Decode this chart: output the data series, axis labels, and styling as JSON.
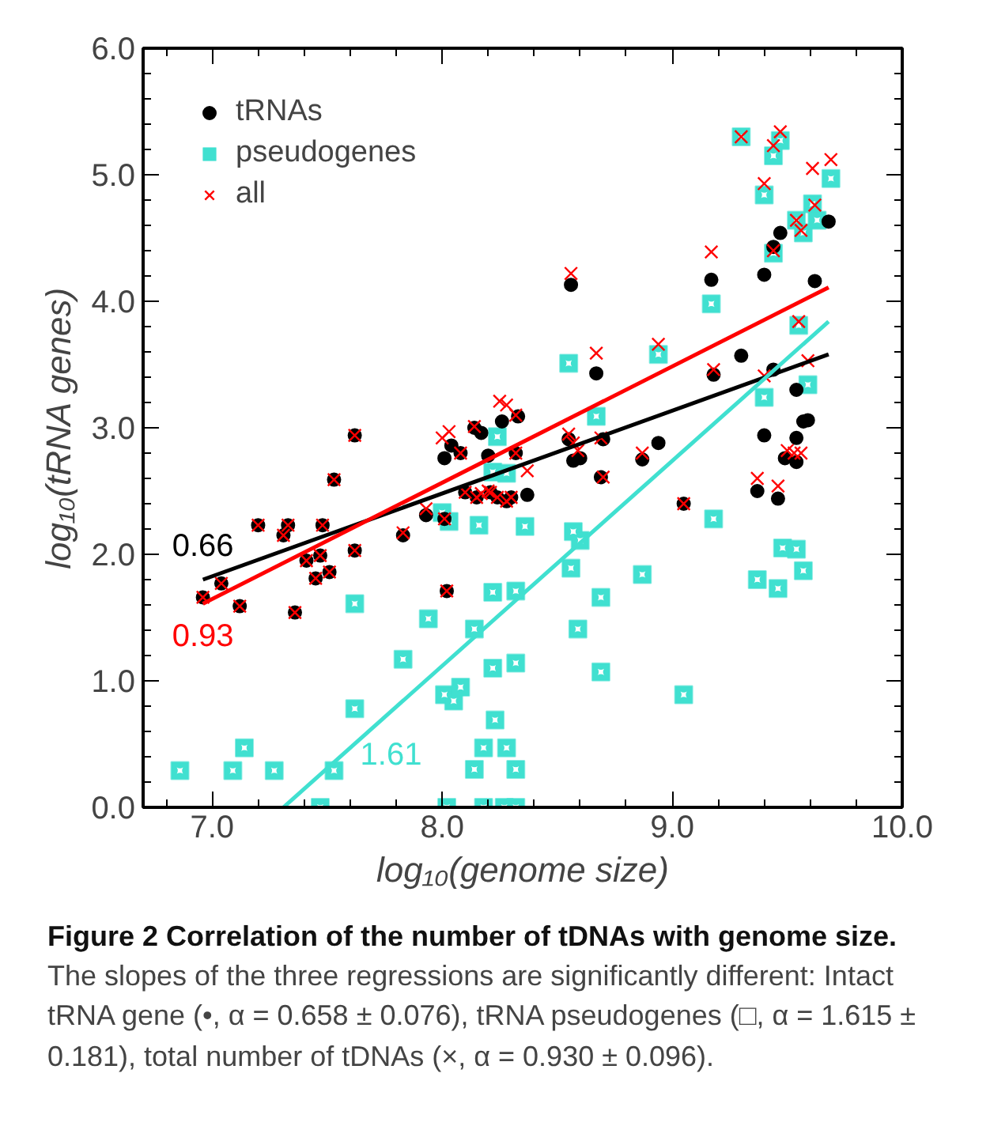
{
  "chart_data": {
    "type": "scatter",
    "title": "Figure 2 Correlation of the number of tDNAs with genome size.",
    "xlabel": "log₁₀(genome size)",
    "ylabel": "log₁₀(tRNA genes)",
    "xlim": [
      6.7,
      10.0
    ],
    "ylim": [
      0,
      6
    ],
    "xticks": [
      {
        "value": 7,
        "label": "7.0"
      },
      {
        "value": 8,
        "label": "8.0"
      },
      {
        "value": 9,
        "label": "9.0"
      },
      {
        "value": 10,
        "label": "10.0"
      }
    ],
    "yticks": [
      {
        "value": 0,
        "label": "0.0"
      },
      {
        "value": 1,
        "label": "1.0"
      },
      {
        "value": 2,
        "label": "2.0"
      },
      {
        "value": 3,
        "label": "3.0"
      },
      {
        "value": 4,
        "label": "4.0"
      },
      {
        "value": 5,
        "label": "5.0"
      },
      {
        "value": 6,
        "label": "6.0"
      }
    ],
    "grid": false,
    "legend": "top left",
    "series": [
      {
        "name": "tRNAs",
        "color": "#000000",
        "marker": "circle",
        "x": [
          6.96,
          7.04,
          7.12,
          7.2,
          7.31,
          7.33,
          7.36,
          7.41,
          7.45,
          7.47,
          7.48,
          7.51,
          7.53,
          7.62,
          7.62,
          7.83,
          7.93,
          8.01,
          8.02,
          8.01,
          8.04,
          8.08,
          8.1,
          8.14,
          8.15,
          8.17,
          8.2,
          8.21,
          8.24,
          8.26,
          8.28,
          8.3,
          8.32,
          8.33,
          8.37,
          8.55,
          8.56,
          8.57,
          8.6,
          8.67,
          8.69,
          8.7,
          8.87,
          8.94,
          9.05,
          9.17,
          9.18,
          9.3,
          9.37,
          9.4,
          9.4,
          9.44,
          9.44,
          9.46,
          9.47,
          9.49,
          9.54,
          9.54,
          9.54,
          9.57,
          9.59,
          9.62,
          9.68
        ],
        "values": [
          1.66,
          1.77,
          1.59,
          2.23,
          2.15,
          2.23,
          1.54,
          1.95,
          1.81,
          1.99,
          2.23,
          1.86,
          2.59,
          2.03,
          2.94,
          2.15,
          2.31,
          2.28,
          1.71,
          2.76,
          2.86,
          2.8,
          2.49,
          3.0,
          2.45,
          2.96,
          2.78,
          2.49,
          2.45,
          3.05,
          2.42,
          2.45,
          2.8,
          3.09,
          2.47,
          2.91,
          4.13,
          2.74,
          2.76,
          3.43,
          2.61,
          2.91,
          2.75,
          2.88,
          2.4,
          4.17,
          3.42,
          3.57,
          2.5,
          2.94,
          4.21,
          3.46,
          4.43,
          2.44,
          4.54,
          2.76,
          2.73,
          2.92,
          3.3,
          3.05,
          3.06,
          4.16,
          4.63
        ]
      },
      {
        "name": "pseudogenes",
        "color": "#40e0d0",
        "marker": "square",
        "x": [
          6.86,
          7.09,
          7.14,
          7.27,
          7.47,
          7.53,
          7.62,
          7.62,
          7.83,
          7.94,
          8.0,
          8.01,
          8.02,
          8.03,
          8.05,
          8.08,
          8.14,
          8.14,
          8.16,
          8.18,
          8.18,
          8.22,
          8.22,
          8.22,
          8.23,
          8.24,
          8.27,
          8.28,
          8.28,
          8.32,
          8.32,
          8.32,
          8.32,
          8.36,
          8.55,
          8.56,
          8.57,
          8.59,
          8.6,
          8.67,
          8.69,
          8.69,
          8.87,
          8.94,
          9.05,
          9.17,
          9.18,
          9.3,
          9.37,
          9.4,
          9.4,
          9.44,
          9.44,
          9.46,
          9.47,
          9.48,
          9.54,
          9.54,
          9.55,
          9.57,
          9.57,
          9.59,
          9.61,
          9.63,
          9.69
        ],
        "values": [
          0.29,
          0.29,
          0.47,
          0.29,
          0.0,
          0.29,
          0.78,
          1.61,
          1.17,
          1.49,
          2.33,
          0.89,
          0.0,
          2.26,
          0.84,
          0.95,
          1.41,
          0.3,
          2.23,
          0.47,
          0.0,
          1.7,
          1.1,
          2.65,
          0.69,
          2.93,
          0.0,
          0.47,
          2.64,
          1.71,
          1.14,
          0.3,
          0.0,
          2.22,
          3.51,
          1.89,
          2.18,
          1.41,
          2.11,
          3.09,
          1.66,
          1.07,
          1.84,
          3.58,
          0.89,
          3.98,
          2.28,
          5.3,
          1.8,
          3.24,
          4.84,
          4.38,
          5.15,
          1.73,
          5.27,
          2.05,
          2.04,
          4.64,
          3.81,
          1.87,
          4.54,
          3.34,
          4.77,
          4.64,
          4.97
        ]
      },
      {
        "name": "all",
        "color": "#ff0000",
        "marker": "cross",
        "x": [
          6.96,
          7.04,
          7.12,
          7.2,
          7.31,
          7.33,
          7.36,
          7.41,
          7.45,
          7.47,
          7.48,
          7.51,
          7.53,
          7.62,
          7.62,
          7.83,
          7.93,
          8.0,
          8.01,
          8.02,
          8.03,
          8.08,
          8.1,
          8.14,
          8.15,
          8.17,
          8.2,
          8.21,
          8.24,
          8.25,
          8.28,
          8.28,
          8.3,
          8.32,
          8.32,
          8.37,
          8.55,
          8.56,
          8.57,
          8.59,
          8.67,
          8.69,
          8.7,
          8.87,
          8.94,
          9.05,
          9.17,
          9.18,
          9.3,
          9.37,
          9.4,
          9.4,
          9.44,
          9.44,
          9.46,
          9.47,
          9.5,
          9.53,
          9.54,
          9.55,
          9.56,
          9.56,
          9.59,
          9.61,
          9.62,
          9.69
        ],
        "values": [
          1.66,
          1.77,
          1.59,
          2.23,
          2.15,
          2.23,
          1.54,
          1.95,
          1.81,
          1.99,
          2.23,
          1.86,
          2.59,
          2.03,
          2.94,
          2.17,
          2.36,
          2.92,
          2.28,
          1.71,
          2.97,
          2.8,
          2.49,
          3.01,
          2.45,
          2.48,
          2.5,
          2.49,
          2.45,
          3.21,
          3.18,
          2.42,
          2.45,
          3.1,
          2.8,
          2.66,
          2.95,
          4.22,
          2.88,
          2.82,
          3.59,
          2.92,
          2.61,
          2.8,
          3.66,
          2.4,
          4.39,
          3.46,
          5.3,
          2.6,
          3.41,
          4.93,
          4.4,
          5.23,
          2.54,
          5.34,
          2.82,
          2.8,
          4.64,
          3.84,
          2.8,
          4.56,
          3.53,
          5.05,
          4.76,
          5.12
        ]
      },
      {
        "type": "line",
        "color": "#000000",
        "x": [
          6.96,
          9.68
        ],
        "values": [
          1.8,
          3.58
        ]
      },
      {
        "type": "line",
        "color": "#ff0000",
        "x": [
          6.96,
          9.68
        ],
        "values": [
          1.61,
          4.11
        ]
      },
      {
        "type": "line",
        "color": "#40e0d0",
        "x": [
          7.31,
          9.68
        ],
        "values": [
          0.0,
          3.84
        ]
      }
    ],
    "annotations": [
      "0.66",
      "0.93",
      "1.61",
      "The slopes of the three regressions are significantly different: Intact tRNA gene (•, α = 0.658 ± 0.076), tRNA pseudogenes (□, α = 1.615 ± 0.181), total number of tDNAs (×, α = 0.930 ± 0.096)."
    ]
  }
}
